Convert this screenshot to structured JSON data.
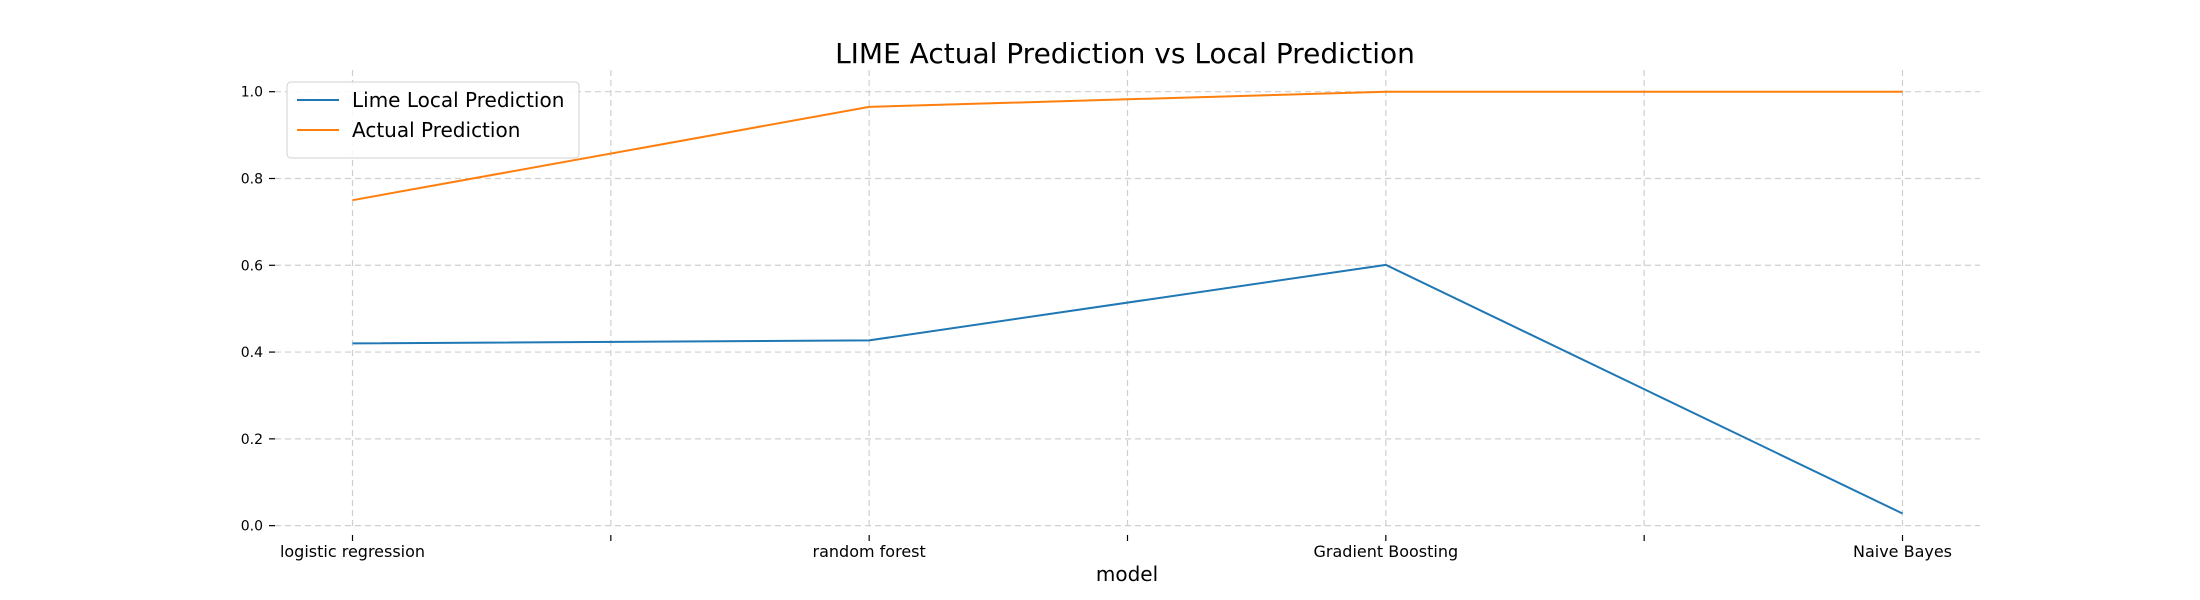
{
  "chart_data": {
    "type": "line",
    "title": "LIME Actual Prediction vs Local Prediction",
    "xlabel": "model",
    "ylabel": "",
    "categories": [
      "logistic regression",
      "random forest",
      "Gradient Boosting",
      "Naive Bayes"
    ],
    "x_positions": [
      0,
      2,
      4,
      6
    ],
    "xlim": [
      -0.3,
      6.3
    ],
    "ylim": [
      -0.01,
      1.05
    ],
    "yticks": [
      0.0,
      0.2,
      0.4,
      0.6,
      0.8,
      1.0
    ],
    "ytick_labels": [
      "0.0",
      "0.2",
      "0.4",
      "0.6",
      "0.8",
      "1.0"
    ],
    "xticks_all": [
      0,
      1,
      2,
      3,
      4,
      5,
      6
    ],
    "grid": true,
    "legend_position": "top-left",
    "series": [
      {
        "name": "Lime Local Prediction",
        "color": "#1f77b4",
        "values": [
          0.42,
          0.427,
          0.601,
          0.028
        ]
      },
      {
        "name": "Actual Prediction",
        "color": "#ff7f0e",
        "values": [
          0.75,
          0.965,
          1.0,
          1.0
        ]
      }
    ]
  }
}
